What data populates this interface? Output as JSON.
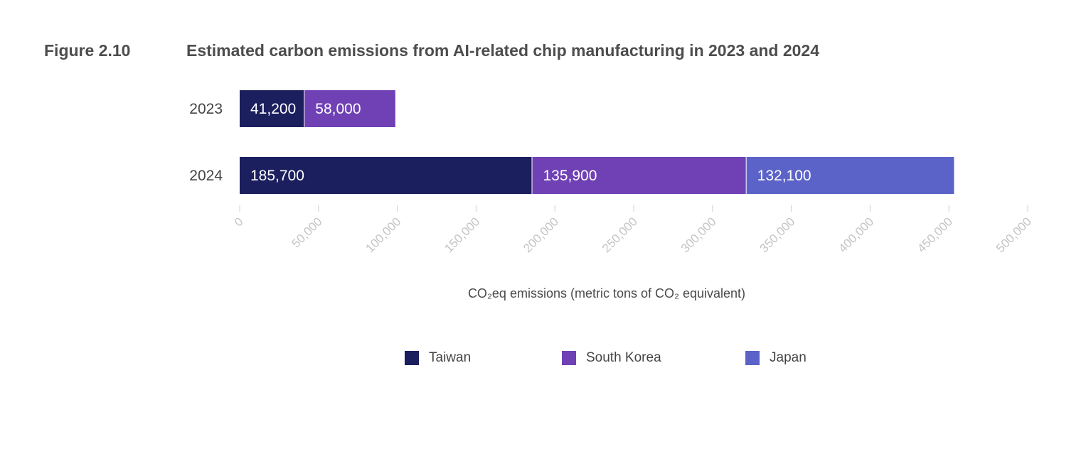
{
  "header": {
    "figure_label": "Figure 2.10",
    "title": "Estimated carbon emissions from AI-related chip manufacturing in 2023 and 2024"
  },
  "chart_data": {
    "type": "bar",
    "orientation": "horizontal",
    "stacked": true,
    "title": "Estimated carbon emissions from AI-related chip manufacturing in 2023 and 2024",
    "categories": [
      "2023",
      "2024"
    ],
    "series": [
      {
        "name": "Taiwan",
        "color": "#1b1f5e",
        "values": [
          41200,
          185700
        ],
        "labels": [
          "41,200",
          "185,700"
        ]
      },
      {
        "name": "South Korea",
        "color": "#7040b5",
        "values": [
          58000,
          135900
        ],
        "labels": [
          "58,000",
          "135,900"
        ]
      },
      {
        "name": "Japan",
        "color": "#5b63c8",
        "values": [
          null,
          132100
        ],
        "labels": [
          "",
          "132,100"
        ]
      }
    ],
    "xlabel": "CO₂eq emissions (metric tons of CO₂ equivalent)",
    "ylabel": "",
    "xlim": [
      0,
      500000
    ],
    "ticks": [
      0,
      50000,
      100000,
      150000,
      200000,
      250000,
      300000,
      350000,
      400000,
      450000,
      500000
    ],
    "tick_labels": [
      "0",
      "50,000",
      "100,000",
      "150,000",
      "200,000",
      "250,000",
      "300,000",
      "350,000",
      "400,000",
      "450,000",
      "500,000"
    ],
    "grid": false,
    "legend_position": "bottom-center"
  }
}
